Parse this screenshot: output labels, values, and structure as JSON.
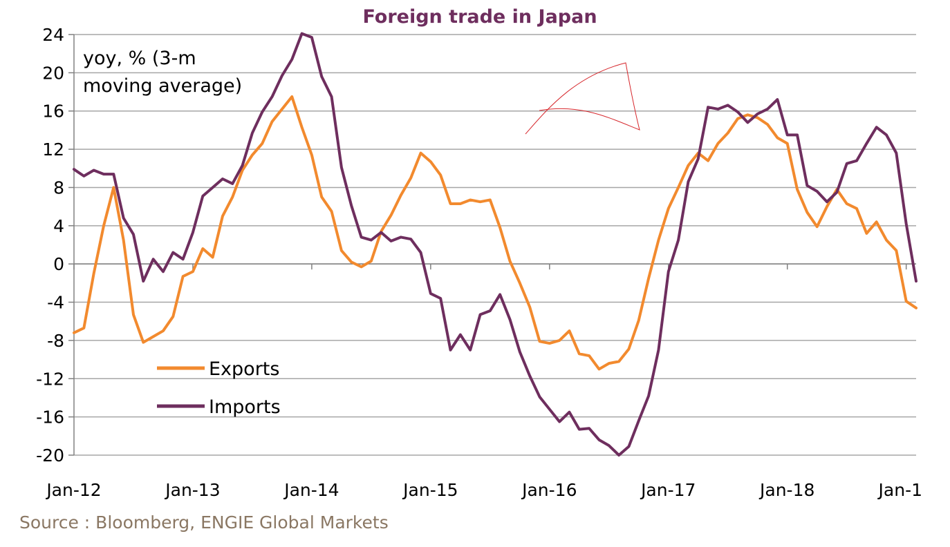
{
  "chart_data": {
    "type": "line",
    "title": "Foreign trade in Japan",
    "annotation": [
      "yoy,  % (3-m",
      "moving average)"
    ],
    "ylim": [
      -20,
      24
    ],
    "yticks": [
      24,
      20,
      16,
      12,
      8,
      4,
      0,
      -4,
      -8,
      -12,
      -16,
      -20
    ],
    "xlim": [
      0,
      85
    ],
    "xticks": [
      {
        "label": "Jan-12",
        "x": 0
      },
      {
        "label": "Jan-13",
        "x": 12
      },
      {
        "label": "Jan-14",
        "x": 24
      },
      {
        "label": "Jan-15",
        "x": 36
      },
      {
        "label": "Jan-16",
        "x": 48
      },
      {
        "label": "Jan-17",
        "x": 60
      },
      {
        "label": "Jan-18",
        "x": 72
      },
      {
        "label": "Jan-1",
        "x": 84
      }
    ],
    "grid": true,
    "legend_position": "lower-left",
    "series": [
      {
        "name": "Exports",
        "color": "#f28a2e",
        "values": [
          -7.2,
          -6.7,
          -1.0,
          4.0,
          8.0,
          2.5,
          -5.3,
          -8.2,
          -7.6,
          -7.0,
          -5.5,
          -1.3,
          -0.8,
          1.6,
          0.7,
          5.0,
          7.0,
          9.8,
          11.4,
          12.6,
          14.9,
          16.2,
          17.5,
          14.3,
          11.4,
          7.0,
          5.5,
          1.4,
          0.2,
          -0.3,
          0.3,
          3.4,
          5.1,
          7.2,
          9.0,
          11.6,
          10.7,
          9.3,
          6.3,
          6.3,
          6.7,
          6.5,
          6.7,
          3.8,
          0.3,
          -2.0,
          -4.5,
          -8.1,
          -8.3,
          -8.0,
          -7.0,
          -9.4,
          -9.6,
          -11.0,
          -10.4,
          -10.2,
          -8.9,
          -5.9,
          -1.5,
          2.5,
          5.8,
          8.0,
          10.3,
          11.6,
          10.8,
          12.6,
          13.7,
          15.2,
          15.6,
          15.3,
          14.6,
          13.2,
          12.6,
          7.8,
          5.4,
          3.9,
          6.0,
          7.8,
          6.3,
          5.8,
          3.2,
          4.4,
          2.5,
          1.4,
          -3.9,
          -4.6
        ]
      },
      {
        "name": "Imports",
        "color": "#6e2e5e",
        "values": [
          9.9,
          9.2,
          9.8,
          9.4,
          9.4,
          4.8,
          3.1,
          -1.8,
          0.5,
          -0.8,
          1.2,
          0.5,
          3.3,
          7.1,
          8.0,
          8.9,
          8.4,
          10.3,
          13.7,
          15.9,
          17.5,
          19.7,
          21.4,
          24.1,
          23.7,
          19.6,
          17.5,
          10.1,
          6.1,
          2.8,
          2.5,
          3.3,
          2.4,
          2.8,
          2.6,
          1.2,
          -3.1,
          -3.6,
          -9.0,
          -7.4,
          -9.0,
          -5.3,
          -4.9,
          -3.2,
          -5.8,
          -9.2,
          -11.7,
          -13.9,
          -15.2,
          -16.5,
          -15.5,
          -17.3,
          -17.2,
          -18.4,
          -19.0,
          -20.0,
          -19.1,
          -16.4,
          -13.8,
          -9.0,
          -0.8,
          2.5,
          8.6,
          11.0,
          16.4,
          16.2,
          16.6,
          15.9,
          14.8,
          15.7,
          16.2,
          17.2,
          13.5,
          13.5,
          8.2,
          7.6,
          6.5,
          7.5,
          10.5,
          10.8,
          12.6,
          14.3,
          13.5,
          11.6,
          4.2,
          -1.8
        ]
      }
    ]
  },
  "source_note": "Source : Bloomberg, ENGIE Global Markets"
}
